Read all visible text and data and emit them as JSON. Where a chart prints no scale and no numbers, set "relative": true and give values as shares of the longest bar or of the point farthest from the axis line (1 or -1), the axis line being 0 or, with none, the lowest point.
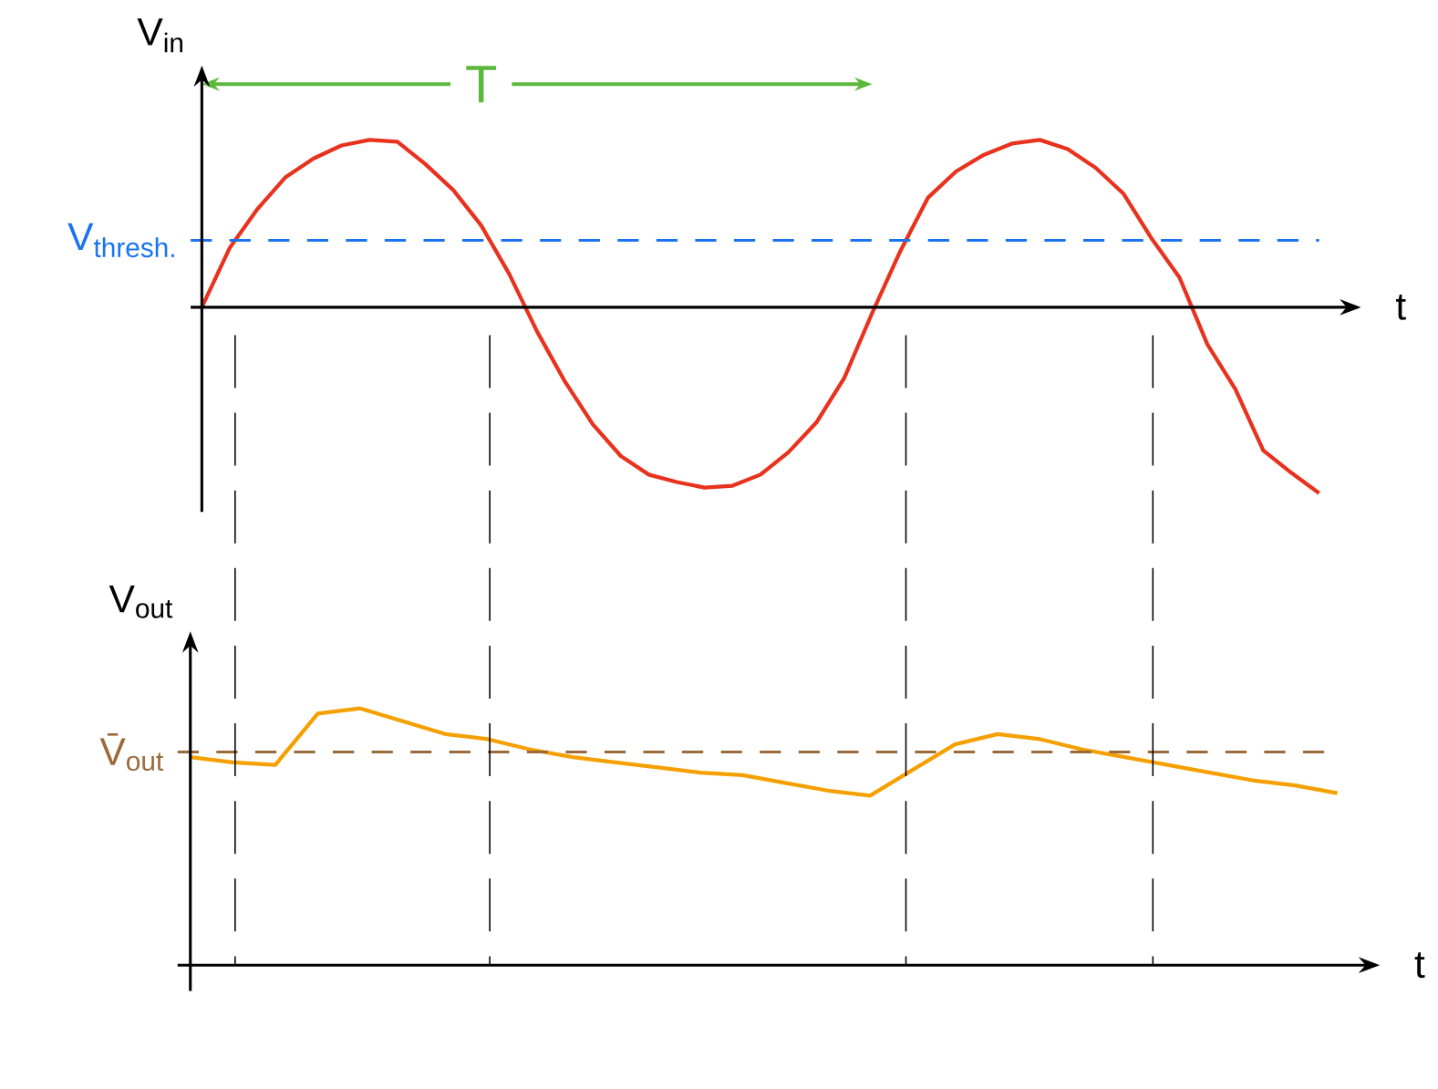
{
  "chart_data": [
    {
      "type": "line",
      "ylabel": "V$_{in}$",
      "xlabel": "t",
      "relative": true,
      "categories": [
        null,
        null,
        null,
        null,
        null,
        null,
        null,
        null,
        null,
        null,
        null,
        null,
        null,
        null,
        null,
        null,
        null,
        null,
        null,
        null,
        null,
        null,
        null,
        null,
        null,
        null,
        null,
        null,
        null,
        null,
        null,
        null,
        null,
        null,
        null,
        null,
        null,
        null,
        null,
        null,
        null
      ],
      "series": [
        {
          "color": "#e8321e",
          "values": [
            0,
            0.32,
            0.53,
            0.7,
            0.8,
            0.87,
            0.9,
            0.89,
            0.77,
            0.63,
            0.44,
            0.18,
            -0.13,
            -0.4,
            -0.63,
            -0.8,
            -0.9,
            -0.94,
            -0.97,
            -0.96,
            -0.9,
            -0.78,
            -0.62,
            -0.38,
            -0.03,
            0.3,
            0.59,
            0.73,
            0.82,
            0.88,
            0.9,
            0.85,
            0.75,
            0.61,
            0.37,
            0.16,
            -0.2,
            -0.44,
            -0.77,
            -0.89,
            -1.0
          ]
        }
      ],
      "ref_lines": [
        {
          "axis": "y",
          "value": 0.36,
          "label": "V$_{thresh.}$",
          "color": "#1a73f0",
          "line_style": "dashed"
        }
      ],
      "annotations": [
        "T"
      ]
    },
    {
      "type": "line",
      "ylabel": "V$_{out}$",
      "xlabel": "t",
      "relative": true,
      "categories": [
        null,
        null,
        null,
        null,
        null,
        null,
        null,
        null,
        null,
        null,
        null,
        null,
        null,
        null,
        null,
        null,
        null,
        null,
        null,
        null,
        null,
        null,
        null,
        null,
        null,
        null,
        null,
        null
      ],
      "series": [
        {
          "color": "#f5a000",
          "values": [
            0.81,
            0.79,
            0.78,
            0.98,
            1.0,
            0.95,
            0.9,
            0.88,
            0.84,
            0.81,
            0.79,
            0.77,
            0.75,
            0.74,
            0.71,
            0.68,
            0.66,
            0.76,
            0.86,
            0.9,
            0.88,
            0.84,
            0.81,
            0.78,
            0.75,
            0.72,
            0.7,
            0.67
          ]
        }
      ],
      "ref_lines": [
        {
          "axis": "y",
          "value": 0.83,
          "label": "V̄$_{out}$",
          "color": "#9a6a3a",
          "line_style": "dashed"
        }
      ]
    }
  ]
}
